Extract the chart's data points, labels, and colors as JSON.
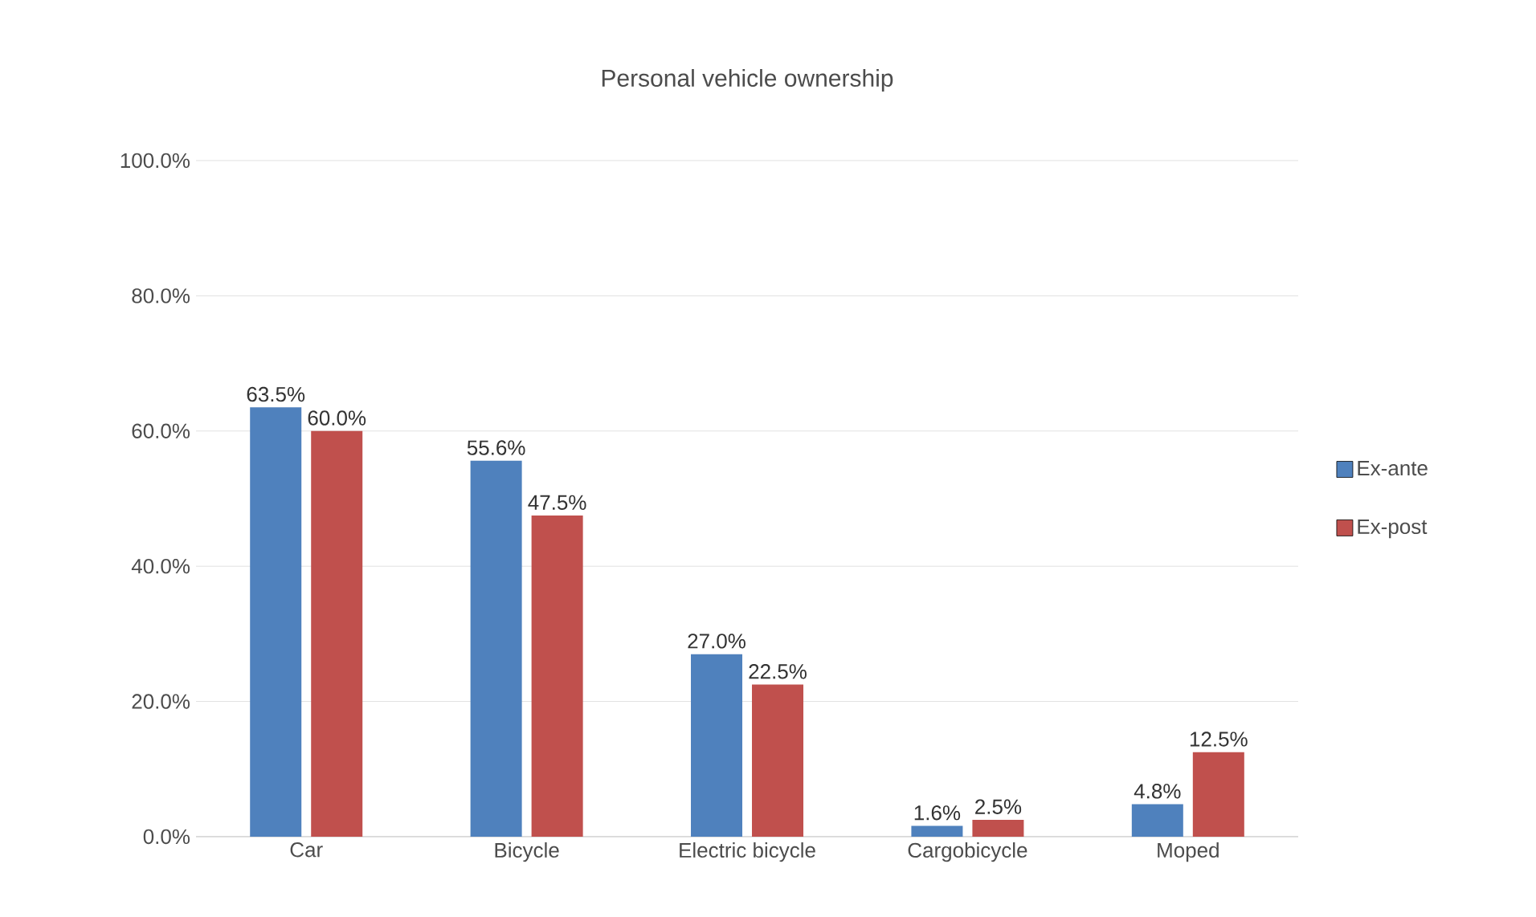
{
  "chart_data": {
    "type": "bar",
    "title": "Personal vehicle ownership",
    "categories": [
      "Car",
      "Bicycle",
      "Electric bicycle",
      "Cargobicycle",
      "Moped"
    ],
    "series": [
      {
        "name": "Ex-ante",
        "color": "#4f81bd",
        "values": [
          63.5,
          55.6,
          27.0,
          1.6,
          4.8
        ],
        "value_labels": [
          "63.5%",
          "55.6%",
          "27.0%",
          "1.6%",
          "4.8%"
        ]
      },
      {
        "name": "Ex-post",
        "color": "#c0504d",
        "values": [
          60.0,
          47.5,
          22.5,
          2.5,
          12.5
        ],
        "value_labels": [
          "60.0%",
          "47.5%",
          "22.5%",
          "2.5%",
          "12.5%"
        ]
      }
    ],
    "ylim": [
      0,
      100
    ],
    "yticks": [
      {
        "value": 0,
        "label": "0.0%"
      },
      {
        "value": 20,
        "label": "20.0%"
      },
      {
        "value": 40,
        "label": "40.0%"
      },
      {
        "value": 60,
        "label": "60.0%"
      },
      {
        "value": 80,
        "label": "80.0%"
      },
      {
        "value": 100,
        "label": "100.0%"
      }
    ],
    "grid": "y",
    "legend": "right"
  }
}
